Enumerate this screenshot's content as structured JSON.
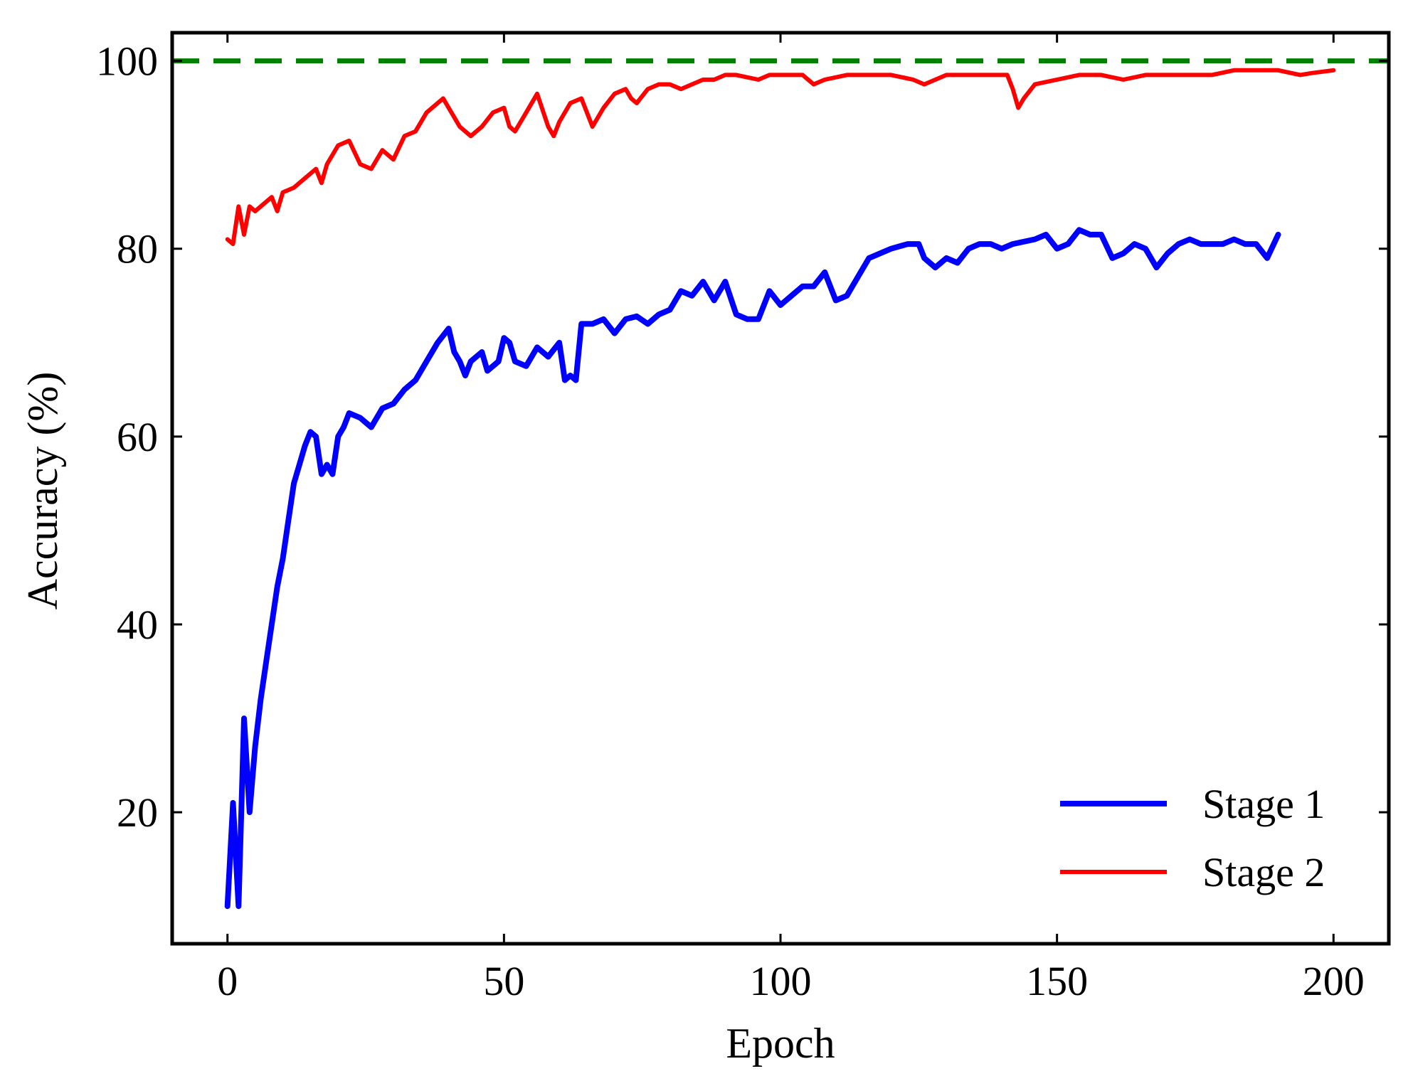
{
  "chart_data": {
    "type": "line",
    "title": "",
    "xlabel": "Epoch",
    "ylabel": "Accuracy (%)",
    "xlim": [
      -10,
      210
    ],
    "ylim": [
      6,
      103
    ],
    "xticks": [
      0,
      50,
      100,
      150,
      200
    ],
    "yticks": [
      20,
      40,
      60,
      80,
      100
    ],
    "grid": false,
    "legend_position": "bottom-right",
    "reference_line": {
      "y": 100,
      "style": "dashed",
      "color": "#008000"
    },
    "series": [
      {
        "name": "Stage 1",
        "color": "#0000ff",
        "points": [
          [
            0,
            10
          ],
          [
            1,
            21
          ],
          [
            2,
            10
          ],
          [
            3,
            30
          ],
          [
            4,
            20
          ],
          [
            5,
            27
          ],
          [
            6,
            32
          ],
          [
            7,
            36
          ],
          [
            8,
            40
          ],
          [
            9,
            44
          ],
          [
            10,
            47
          ],
          [
            11,
            51
          ],
          [
            12,
            55
          ],
          [
            13,
            57
          ],
          [
            14,
            59
          ],
          [
            15,
            60.5
          ],
          [
            16,
            60
          ],
          [
            17,
            56
          ],
          [
            18,
            57
          ],
          [
            19,
            56
          ],
          [
            20,
            60
          ],
          [
            21,
            61
          ],
          [
            22,
            62.5
          ],
          [
            24,
            62
          ],
          [
            26,
            61
          ],
          [
            28,
            63
          ],
          [
            30,
            63.5
          ],
          [
            32,
            65
          ],
          [
            34,
            66
          ],
          [
            36,
            68
          ],
          [
            38,
            70
          ],
          [
            40,
            71.5
          ],
          [
            41,
            69
          ],
          [
            42,
            68
          ],
          [
            43,
            66.5
          ],
          [
            44,
            68
          ],
          [
            46,
            69
          ],
          [
            47,
            67
          ],
          [
            49,
            68
          ],
          [
            50,
            70.5
          ],
          [
            51,
            70
          ],
          [
            52,
            68
          ],
          [
            54,
            67.5
          ],
          [
            56,
            69.5
          ],
          [
            58,
            68.5
          ],
          [
            60,
            70
          ],
          [
            61,
            66
          ],
          [
            62,
            66.5
          ],
          [
            63,
            66
          ],
          [
            64,
            72
          ],
          [
            66,
            72
          ],
          [
            68,
            72.5
          ],
          [
            70,
            71
          ],
          [
            72,
            72.5
          ],
          [
            74,
            72.8
          ],
          [
            76,
            72
          ],
          [
            78,
            73
          ],
          [
            80,
            73.5
          ],
          [
            82,
            75.5
          ],
          [
            84,
            75
          ],
          [
            86,
            76.5
          ],
          [
            88,
            74.5
          ],
          [
            90,
            76.5
          ],
          [
            92,
            73
          ],
          [
            94,
            72.5
          ],
          [
            96,
            72.5
          ],
          [
            98,
            75.5
          ],
          [
            100,
            74
          ],
          [
            102,
            75
          ],
          [
            104,
            76
          ],
          [
            106,
            76
          ],
          [
            108,
            77.5
          ],
          [
            110,
            74.5
          ],
          [
            112,
            75
          ],
          [
            114,
            77
          ],
          [
            116,
            79
          ],
          [
            118,
            79.5
          ],
          [
            120,
            80
          ],
          [
            123,
            80.5
          ],
          [
            125,
            80.5
          ],
          [
            126,
            79
          ],
          [
            128,
            78
          ],
          [
            130,
            79
          ],
          [
            132,
            78.5
          ],
          [
            134,
            80
          ],
          [
            136,
            80.5
          ],
          [
            138,
            80.5
          ],
          [
            140,
            80
          ],
          [
            142,
            80.5
          ],
          [
            146,
            81
          ],
          [
            148,
            81.5
          ],
          [
            150,
            80
          ],
          [
            152,
            80.5
          ],
          [
            154,
            82
          ],
          [
            156,
            81.5
          ],
          [
            158,
            81.5
          ],
          [
            160,
            79
          ],
          [
            162,
            79.5
          ],
          [
            164,
            80.5
          ],
          [
            166,
            80
          ],
          [
            168,
            78
          ],
          [
            170,
            79.5
          ],
          [
            172,
            80.5
          ],
          [
            174,
            81
          ],
          [
            176,
            80.5
          ],
          [
            178,
            80.5
          ],
          [
            180,
            80.5
          ],
          [
            182,
            81
          ],
          [
            184,
            80.5
          ],
          [
            186,
            80.5
          ],
          [
            188,
            79
          ],
          [
            190,
            81.5
          ]
        ]
      },
      {
        "name": "Stage 2",
        "color": "#ff0000",
        "points": [
          [
            0,
            81
          ],
          [
            1,
            80.5
          ],
          [
            2,
            84.5
          ],
          [
            3,
            81.5
          ],
          [
            4,
            84.5
          ],
          [
            5,
            84
          ],
          [
            6,
            84.5
          ],
          [
            8,
            85.5
          ],
          [
            9,
            84
          ],
          [
            10,
            86
          ],
          [
            12,
            86.5
          ],
          [
            14,
            87.5
          ],
          [
            16,
            88.5
          ],
          [
            17,
            87
          ],
          [
            18,
            89
          ],
          [
            20,
            91
          ],
          [
            22,
            91.5
          ],
          [
            24,
            89
          ],
          [
            26,
            88.5
          ],
          [
            28,
            90.5
          ],
          [
            30,
            89.5
          ],
          [
            32,
            92
          ],
          [
            34,
            92.5
          ],
          [
            36,
            94.5
          ],
          [
            38,
            95.5
          ],
          [
            39,
            96
          ],
          [
            40,
            95
          ],
          [
            42,
            93
          ],
          [
            44,
            92
          ],
          [
            46,
            93
          ],
          [
            48,
            94.5
          ],
          [
            50,
            95
          ],
          [
            51,
            93
          ],
          [
            52,
            92.5
          ],
          [
            54,
            94.5
          ],
          [
            56,
            96.5
          ],
          [
            58,
            93
          ],
          [
            59,
            92
          ],
          [
            60,
            93.5
          ],
          [
            62,
            95.5
          ],
          [
            64,
            96
          ],
          [
            66,
            93
          ],
          [
            68,
            95
          ],
          [
            70,
            96.5
          ],
          [
            72,
            97
          ],
          [
            73,
            96
          ],
          [
            74,
            95.5
          ],
          [
            76,
            97
          ],
          [
            78,
            97.5
          ],
          [
            80,
            97.5
          ],
          [
            82,
            97
          ],
          [
            84,
            97.5
          ],
          [
            86,
            98
          ],
          [
            88,
            98
          ],
          [
            90,
            98.5
          ],
          [
            92,
            98.5
          ],
          [
            96,
            98
          ],
          [
            98,
            98.5
          ],
          [
            100,
            98.5
          ],
          [
            104,
            98.5
          ],
          [
            106,
            97.5
          ],
          [
            108,
            98
          ],
          [
            112,
            98.5
          ],
          [
            116,
            98.5
          ],
          [
            120,
            98.5
          ],
          [
            124,
            98
          ],
          [
            126,
            97.5
          ],
          [
            130,
            98.5
          ],
          [
            134,
            98.5
          ],
          [
            138,
            98.5
          ],
          [
            141,
            98.5
          ],
          [
            142,
            97
          ],
          [
            143,
            95
          ],
          [
            144,
            96
          ],
          [
            146,
            97.5
          ],
          [
            150,
            98
          ],
          [
            154,
            98.5
          ],
          [
            158,
            98.5
          ],
          [
            162,
            98
          ],
          [
            166,
            98.5
          ],
          [
            170,
            98.5
          ],
          [
            174,
            98.5
          ],
          [
            178,
            98.5
          ],
          [
            182,
            99
          ],
          [
            186,
            99
          ],
          [
            190,
            99
          ],
          [
            194,
            98.5
          ],
          [
            196,
            98.7
          ],
          [
            200,
            99
          ]
        ]
      }
    ]
  }
}
